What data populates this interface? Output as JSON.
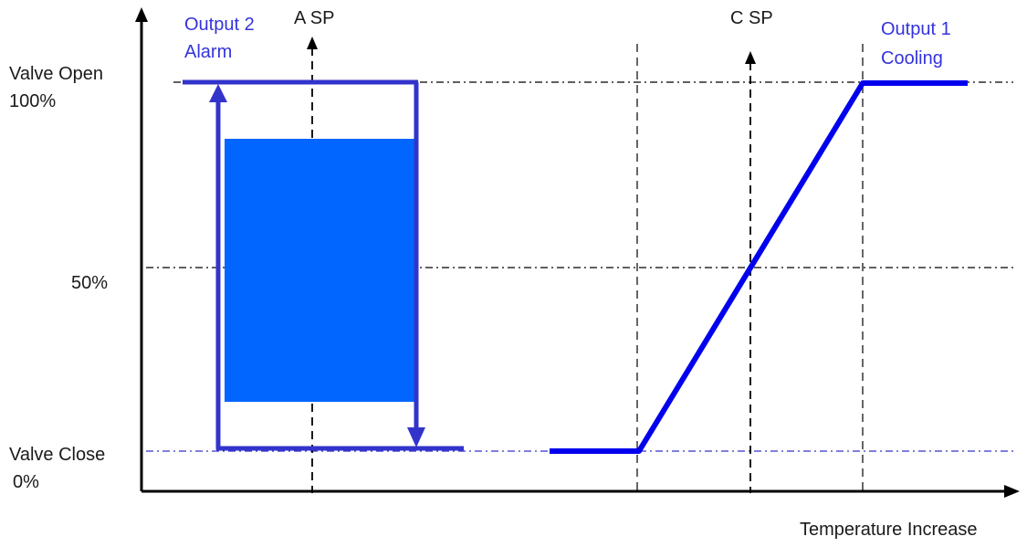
{
  "labels": {
    "y_top_1": "Valve Open",
    "y_top_2": "100%",
    "y_mid": "50%",
    "y_bottom_1": "Valve Close",
    "y_bottom_2": "0%",
    "x_axis": "Temperature Increase",
    "a_sp": "A SP",
    "c_sp": "C SP",
    "output2_line1": "Output 2",
    "output2_line2": "Alarm",
    "output1_line1": "Output 1",
    "output1_line2": "Cooling"
  },
  "colors": {
    "axis": "#000000",
    "cooling_line": "#0000ee",
    "alarm_outline": "#3333cc",
    "alarm_fill": "#0066ff",
    "label_blue": "#3333dd",
    "grid": "#000000",
    "close_line": "#3333cc"
  }
}
